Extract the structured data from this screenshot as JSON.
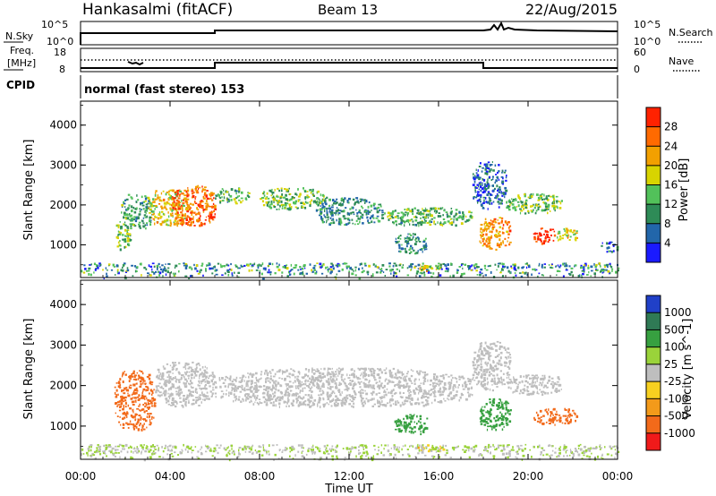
{
  "header": {
    "station": "Hankasalmi (fitACF)",
    "beam": "Beam 13",
    "date": "22/Aug/2015"
  },
  "noise_panel": {
    "left_label": "N.Sky",
    "left_ticks": [
      "10^5",
      "10^0"
    ],
    "right_ticks": [
      "10^5",
      "10^0"
    ],
    "right_label": "N.Search"
  },
  "freq_panel": {
    "left_label_line1": "Freq.",
    "left_label_line2": "[MHz]",
    "left_ticks": [
      "18",
      "8"
    ],
    "right_ticks": [
      "60",
      "0"
    ],
    "right_label": "Nave",
    "cpid_label": "CPID",
    "cpid_text": "normal (fast stereo) 153"
  },
  "colors": {
    "power_scale": [
      "#1a1aff",
      "#2266aa",
      "#2e8b57",
      "#52c15a",
      "#d8d400",
      "#f2a000",
      "#ff6a00",
      "#ff2200"
    ],
    "velocity_scale": [
      "#2040c8",
      "#2f7a55",
      "#37a040",
      "#9ad33a",
      "#bebebe",
      "#f7d020",
      "#f39a1a",
      "#f26a1a",
      "#f01a1a"
    ]
  },
  "chart_data": [
    {
      "type": "heatmap",
      "title": "Power",
      "ylabel": "Slant Range [km]",
      "xlabel": "Time UT",
      "x_ticks": [
        "00:00",
        "04:00",
        "08:00",
        "12:00",
        "16:00",
        "20:00",
        "00:00"
      ],
      "y_ticks": [
        "1000",
        "2000",
        "3000",
        "4000"
      ],
      "xlim_hours": [
        0,
        24
      ],
      "ylim_km": [
        180,
        4600
      ],
      "colorbar": {
        "label": "Power [dB]",
        "ticks": [
          "4",
          "8",
          "12",
          "16",
          "20",
          "24",
          "28"
        ],
        "range": [
          0,
          30
        ]
      },
      "regions": [
        {
          "t0": 1.5,
          "t1": 2.2,
          "r0": 900,
          "r1": 1600,
          "v": 13
        },
        {
          "t0": 1.8,
          "t1": 3.2,
          "r0": 1400,
          "r1": 2300,
          "v": 11
        },
        {
          "t0": 3.0,
          "t1": 4.8,
          "r0": 1500,
          "r1": 2400,
          "v": 18
        },
        {
          "t0": 4.0,
          "t1": 6.0,
          "r0": 1500,
          "r1": 2500,
          "v": 24
        },
        {
          "t0": 5.6,
          "t1": 6.0,
          "r0": 1600,
          "r1": 1900,
          "v": 27
        },
        {
          "t0": 6.0,
          "t1": 7.5,
          "r0": 2050,
          "r1": 2450,
          "v": 12
        },
        {
          "t0": 8.0,
          "t1": 11.0,
          "r0": 1900,
          "r1": 2450,
          "v": 13
        },
        {
          "t0": 10.5,
          "t1": 13.5,
          "r0": 1500,
          "r1": 2200,
          "v": 9
        },
        {
          "t0": 13.5,
          "t1": 17.5,
          "r0": 1500,
          "r1": 1950,
          "v": 12
        },
        {
          "t0": 14.0,
          "t1": 15.5,
          "r0": 800,
          "r1": 1300,
          "v": 9
        },
        {
          "t0": 15.0,
          "t1": 16.2,
          "r0": 380,
          "r1": 560,
          "v": 19
        },
        {
          "t0": 17.5,
          "t1": 19.0,
          "r0": 1900,
          "r1": 3100,
          "v": 6
        },
        {
          "t0": 17.8,
          "t1": 19.2,
          "r0": 900,
          "r1": 1700,
          "v": 22
        },
        {
          "t0": 19.0,
          "t1": 21.5,
          "r0": 1800,
          "r1": 2300,
          "v": 13
        },
        {
          "t0": 20.2,
          "t1": 21.2,
          "r0": 1050,
          "r1": 1450,
          "v": 28
        },
        {
          "t0": 21.2,
          "t1": 22.2,
          "r0": 1100,
          "r1": 1450,
          "v": 18
        },
        {
          "t0": 23.2,
          "t1": 24.0,
          "r0": 850,
          "r1": 1100,
          "v": 7
        },
        {
          "t0": 0.0,
          "t1": 24.0,
          "r0": 180,
          "r1": 560,
          "v": 6
        }
      ]
    },
    {
      "type": "heatmap",
      "title": "Velocity",
      "ylabel": "Slant Range [km]",
      "xlabel": "Time UT",
      "x_ticks": [
        "00:00",
        "04:00",
        "08:00",
        "12:00",
        "16:00",
        "20:00",
        "00:00"
      ],
      "y_ticks": [
        "1000",
        "2000",
        "3000",
        "4000"
      ],
      "xlim_hours": [
        0,
        24
      ],
      "ylim_km": [
        180,
        4600
      ],
      "colorbar": {
        "label": "Velocity [m s^-1]",
        "ticks": [
          "1000",
          "500",
          "100",
          "25",
          "-25",
          "-100",
          "-500",
          "-1000"
        ]
      },
      "regions": [
        {
          "t0": 1.5,
          "t1": 3.3,
          "r0": 900,
          "r1": 2400,
          "v": -500
        },
        {
          "t0": 3.3,
          "t1": 6.0,
          "r0": 1500,
          "r1": 2600,
          "v": 0
        },
        {
          "t0": 6.0,
          "t1": 17.5,
          "r0": 1500,
          "r1": 2450,
          "v": 0
        },
        {
          "t0": 14.0,
          "t1": 15.5,
          "r0": 800,
          "r1": 1300,
          "v": 100
        },
        {
          "t0": 15.0,
          "t1": 16.2,
          "r0": 380,
          "r1": 560,
          "v": -50
        },
        {
          "t0": 17.5,
          "t1": 19.2,
          "r0": 1900,
          "r1": 3100,
          "v": 0
        },
        {
          "t0": 17.8,
          "t1": 19.2,
          "r0": 900,
          "r1": 1700,
          "v": 100
        },
        {
          "t0": 19.0,
          "t1": 21.5,
          "r0": 1800,
          "r1": 2300,
          "v": 0
        },
        {
          "t0": 20.2,
          "t1": 22.2,
          "r0": 1050,
          "r1": 1450,
          "v": -500
        },
        {
          "t0": 0.0,
          "t1": 24.0,
          "r0": 180,
          "r1": 560,
          "v": 25
        }
      ]
    }
  ]
}
